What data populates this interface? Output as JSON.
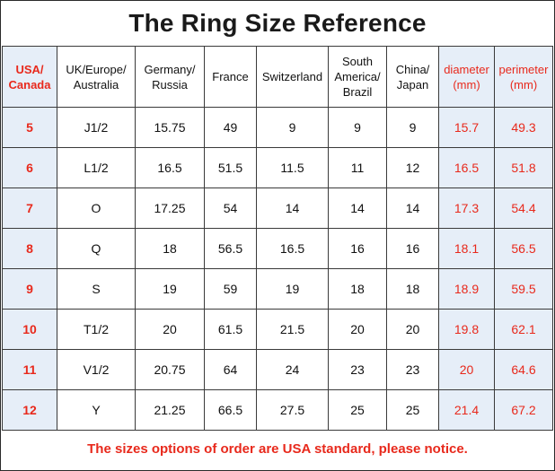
{
  "title": "The Ring Size Reference",
  "columns": [
    {
      "label": "USA/\nCanada"
    },
    {
      "label": "UK/Europe/\nAustralia"
    },
    {
      "label": "Germany/\nRussia"
    },
    {
      "label": "France"
    },
    {
      "label": "Switzerland"
    },
    {
      "label": "South\nAmerica/\nBrazil"
    },
    {
      "label": "China/\nJapan"
    },
    {
      "label": "diameter\n(mm)"
    },
    {
      "label": "perimeter\n(mm)"
    }
  ],
  "rows": [
    [
      "5",
      "J1/2",
      "15.75",
      "49",
      "9",
      "9",
      "9",
      "15.7",
      "49.3"
    ],
    [
      "6",
      "L1/2",
      "16.5",
      "51.5",
      "11.5",
      "11",
      "12",
      "16.5",
      "51.8"
    ],
    [
      "7",
      "O",
      "17.25",
      "54",
      "14",
      "14",
      "14",
      "17.3",
      "54.4"
    ],
    [
      "8",
      "Q",
      "18",
      "56.5",
      "16.5",
      "16",
      "16",
      "18.1",
      "56.5"
    ],
    [
      "9",
      "S",
      "19",
      "59",
      "19",
      "18",
      "18",
      "18.9",
      "59.5"
    ],
    [
      "10",
      "T1/2",
      "20",
      "61.5",
      "21.5",
      "20",
      "20",
      "19.8",
      "62.1"
    ],
    [
      "11",
      "V1/2",
      "20.75",
      "64",
      "24",
      "23",
      "23",
      "20",
      "64.6"
    ],
    [
      "12",
      "Y",
      "21.25",
      "66.5",
      "27.5",
      "25",
      "25",
      "21.4",
      "67.2"
    ]
  ],
  "footer": "The sizes options of order are USA standard, please notice.",
  "colors": {
    "accent_red": "#e8291c",
    "highlight_bg": "#e6eef8",
    "border": "#3a3a3a"
  }
}
